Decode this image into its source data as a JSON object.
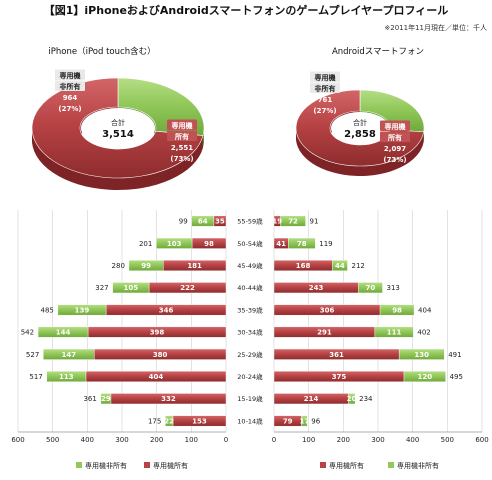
{
  "title": "【図1】iPhoneおよびAndroidスマートフォンのゲームプレイヤープロフィール",
  "note": "※2011年11月現在／単位：千人",
  "chart_data": [
    {
      "type": "pie",
      "subtitle": "iPhone（iPod touch含む）",
      "total_label": "合計",
      "total": "3,514",
      "slices": [
        {
          "label_lines": [
            "専用機",
            "非所有"
          ],
          "value": 964,
          "value_text": "964",
          "pct_text": "(27%)",
          "color": "#92c95a"
        },
        {
          "label_lines": [
            "専用機",
            "所有"
          ],
          "value": 2551,
          "value_text": "2,551",
          "pct_text": "(73%)",
          "color": "#b84345"
        }
      ]
    },
    {
      "type": "pie",
      "subtitle": "Androidスマートフォン",
      "total_label": "合計",
      "total": "2,858",
      "slices": [
        {
          "label_lines": [
            "専用機",
            "非所有"
          ],
          "value": 761,
          "value_text": "761",
          "pct_text": "(27%)",
          "color": "#92c95a"
        },
        {
          "label_lines": [
            "専用機",
            "所有"
          ],
          "value": 2097,
          "value_text": "2,097",
          "pct_text": "(73%)",
          "color": "#b84345"
        }
      ]
    },
    {
      "type": "bar",
      "orientation": "horizontal-diverging",
      "categories": [
        "55-59歳",
        "50-54歳",
        "45-49歳",
        "40-44歳",
        "35-39歳",
        "30-34歳",
        "25-29歳",
        "20-24歳",
        "15-19歳",
        "10-14歳"
      ],
      "xlim": [
        0,
        600
      ],
      "xticks": [
        "600",
        "500",
        "400",
        "300",
        "200",
        "100",
        "0"
      ],
      "rticks": [
        "0",
        "100",
        "200",
        "300",
        "400",
        "500",
        "600"
      ],
      "left": {
        "name": "iPhone（iPod touch含む）",
        "totals": [
          99,
          201,
          280,
          327,
          485,
          542,
          527,
          517,
          361,
          175
        ],
        "series": [
          {
            "name": "専用機非所有",
            "color": "#92c95a",
            "values": [
              64,
              103,
              99,
              105,
              139,
              144,
              147,
              113,
              29,
              22
            ]
          },
          {
            "name": "専用機所有",
            "color": "#b84345",
            "values": [
              35,
              98,
              181,
              222,
              346,
              398,
              380,
              404,
              332,
              153
            ]
          }
        ]
      },
      "right": {
        "name": "Androidスマートフォン",
        "totals": [
          91,
          119,
          212,
          313,
          404,
          402,
          491,
          495,
          234,
          96
        ],
        "series": [
          {
            "name": "専用機所有",
            "color": "#b84345",
            "values": [
              19,
              41,
              168,
              243,
              306,
              291,
              361,
              375,
              214,
              79
            ]
          },
          {
            "name": "専用機非所有",
            "color": "#92c95a",
            "values": [
              72,
              78,
              44,
              70,
              98,
              111,
              130,
              120,
              20,
              17
            ]
          }
        ]
      },
      "legend_left": [
        {
          "name": "専用機非所有",
          "color": "#92c95a"
        },
        {
          "name": "専用機所有",
          "color": "#b84345"
        }
      ],
      "legend_right": [
        {
          "name": "専用機所有",
          "color": "#b84345"
        },
        {
          "name": "専用機非所有",
          "color": "#92c95a"
        }
      ],
      "grid": true
    }
  ]
}
